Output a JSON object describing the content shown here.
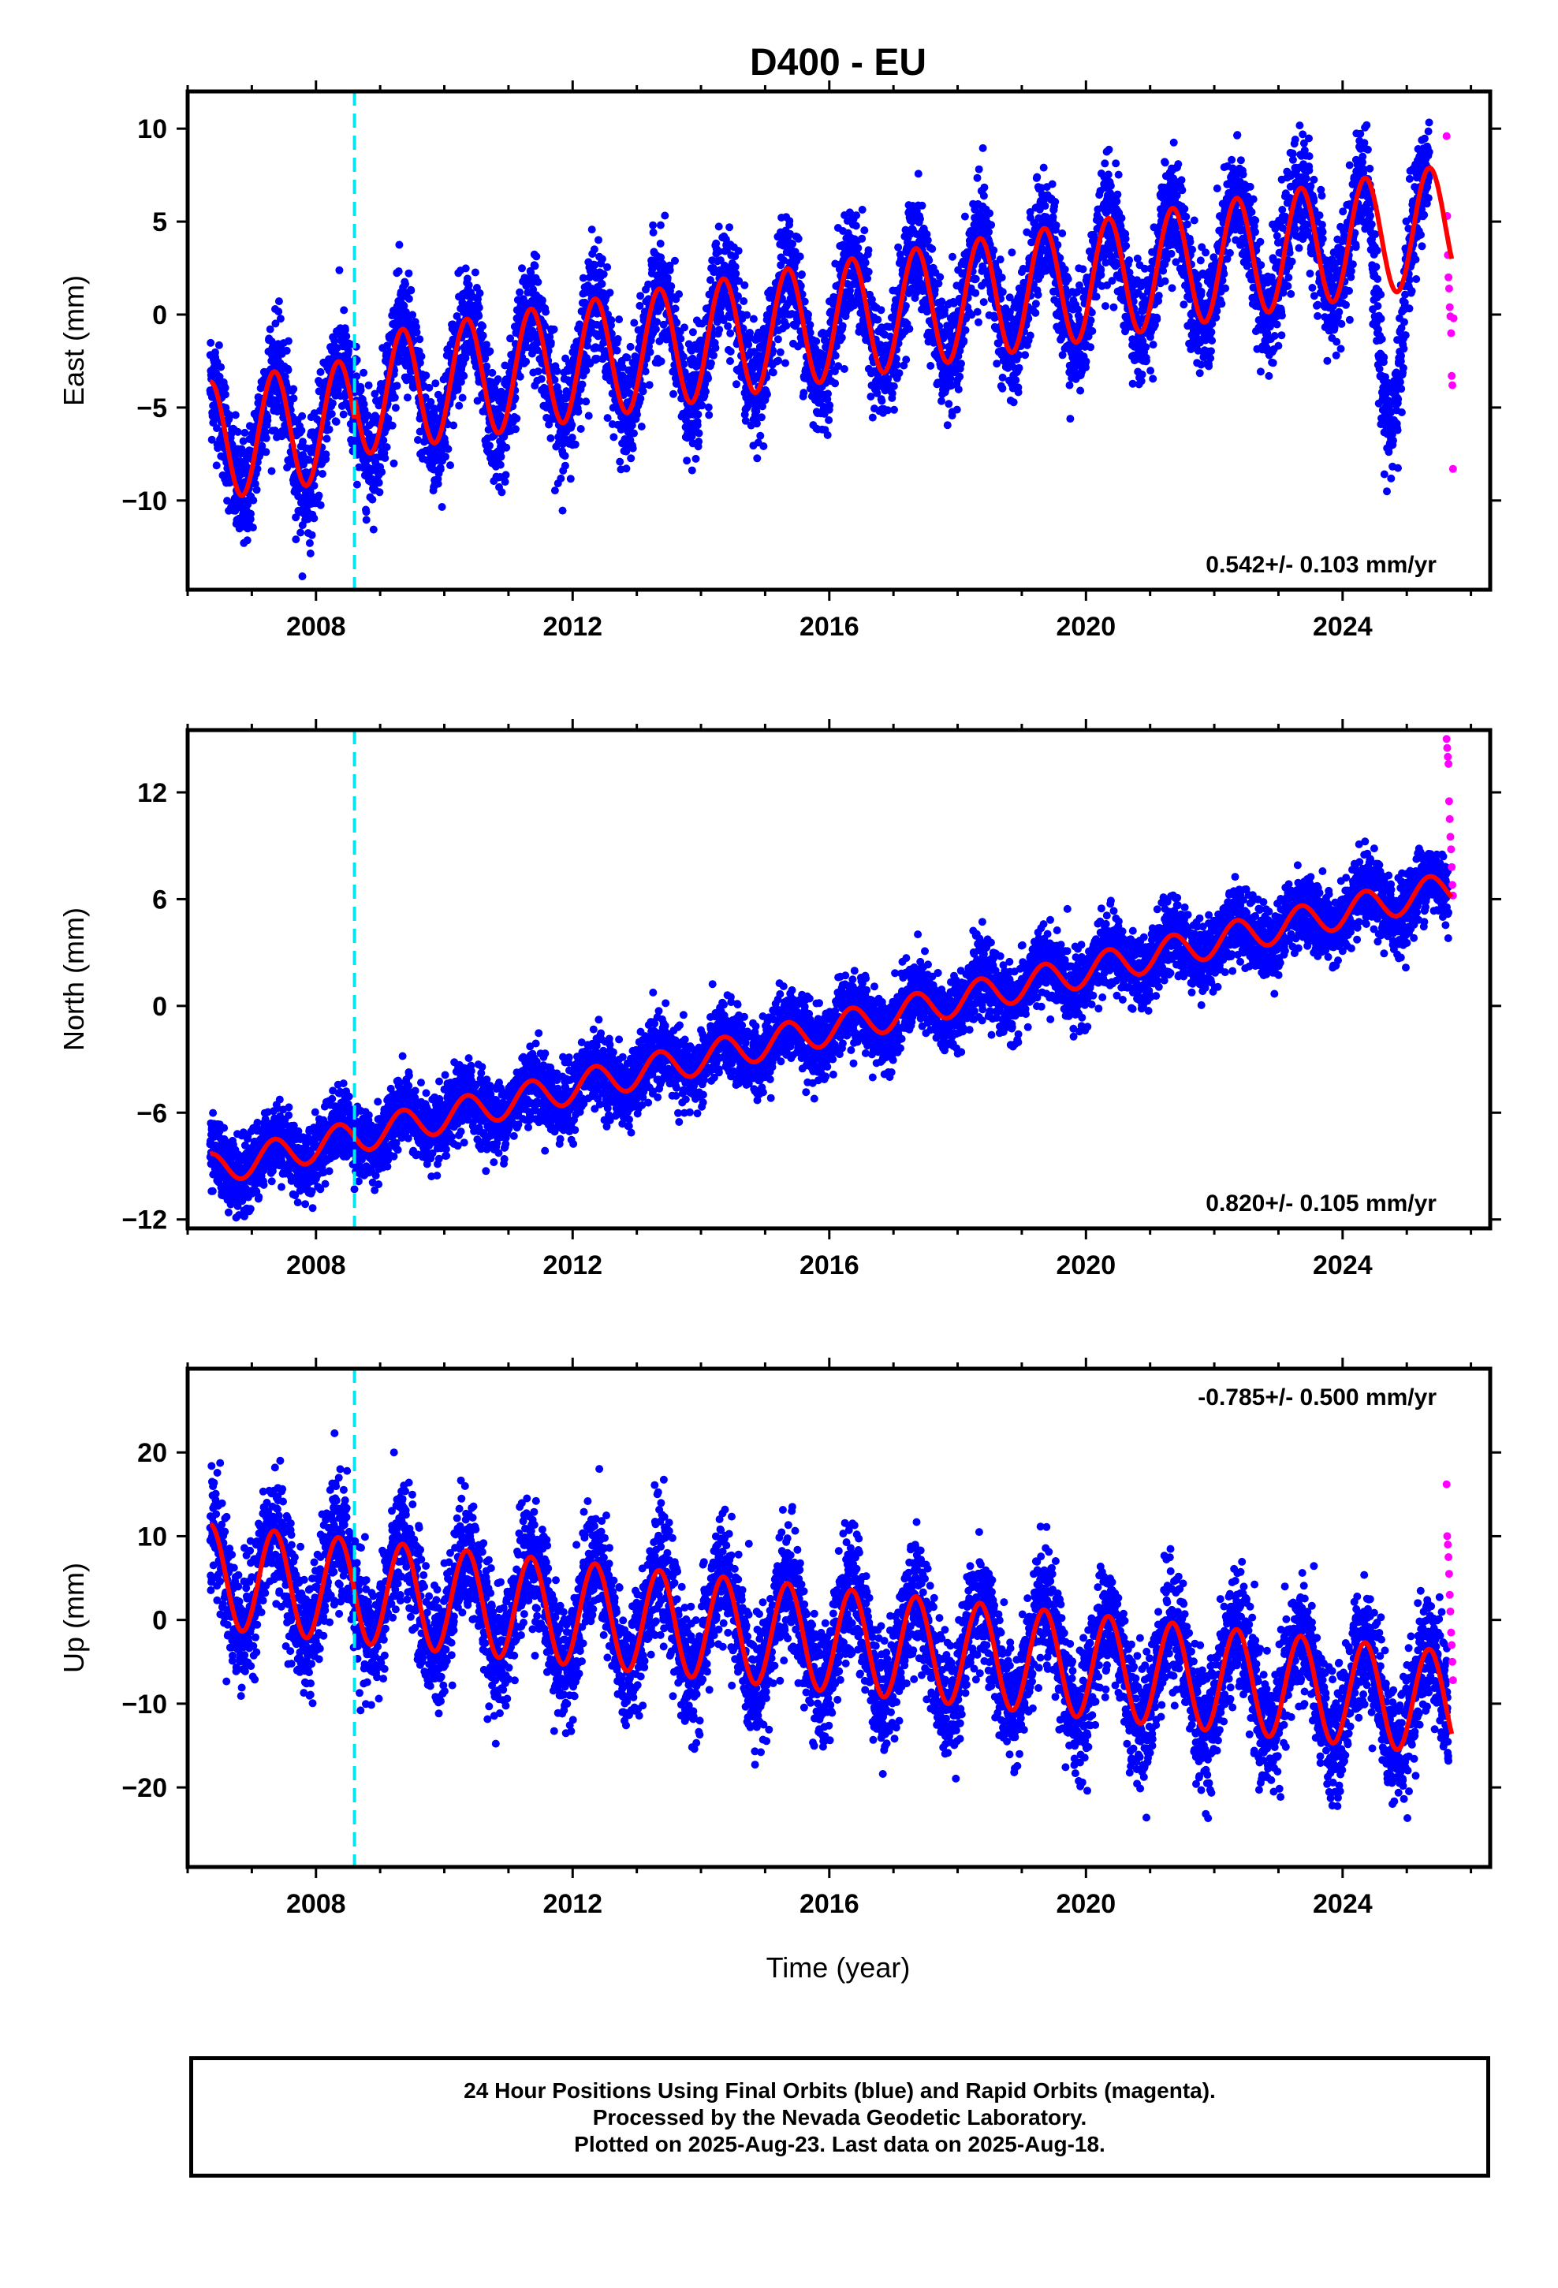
{
  "title": "D400 - EU",
  "xlabel": "Time (year)",
  "colors": {
    "final": "#0000ff",
    "rapid": "#ff00ff",
    "model": "#ff0000",
    "equipment_change": "#00e5ee",
    "frame": "#000000"
  },
  "footer": {
    "line1": "24 Hour Positions Using Final Orbits (blue) and Rapid Orbits (magenta).",
    "line2": "Processed by the Nevada Geodetic Laboratory.",
    "line3": "Plotted on 2025-Aug-23. Last data on 2025-Aug-18."
  },
  "chart_data": [
    {
      "type": "scatter",
      "component": "East",
      "ylabel": "East (mm)",
      "rate_label": "0.542+/- 0.103 mm/yr",
      "xlim": [
        2006.0,
        2026.3
      ],
      "ylim": [
        -14.8,
        12
      ],
      "xticks": [
        2008,
        2012,
        2016,
        2020,
        2024
      ],
      "yticks": [
        -10,
        -5,
        0,
        5,
        10
      ],
      "yticklabels": [
        "−10",
        "−5",
        "0",
        "5",
        "10"
      ],
      "series": [
        {
          "kind": "final_orbits",
          "x_start": 2006.35,
          "x_end": 2025.35,
          "trend_at_2006": -7.0,
          "rate": 0.542,
          "annual_amp": 3.2,
          "noise": 1.5
        },
        {
          "kind": "rapid_orbits",
          "x": [
            2025.62,
            2025.63,
            2025.64,
            2025.65,
            2025.66,
            2025.67,
            2025.68,
            2025.69,
            2025.7,
            2025.71,
            2025.72,
            2025.73
          ],
          "y": [
            9.6,
            5.3,
            3.2,
            2.0,
            1.4,
            0.4,
            -0.1,
            -1.0,
            -3.3,
            -3.8,
            -8.3,
            -0.2
          ]
        },
        {
          "kind": "model",
          "x_start": 2006.35,
          "x_end": 2025.7,
          "offset_at": 2008.6,
          "offset": 1.2
        }
      ],
      "equipment_change_year": 2008.6,
      "data_gap": {
        "x_start": 2024.4,
        "x_end": 2025.0,
        "note": "departure of data below model"
      }
    },
    {
      "type": "scatter",
      "component": "North",
      "ylabel": "North (mm)",
      "rate_label": "0.820+/- 0.105 mm/yr",
      "xlim": [
        2006.0,
        2026.3
      ],
      "ylim": [
        -12.5,
        15.5
      ],
      "xticks": [
        2008,
        2012,
        2016,
        2020,
        2024
      ],
      "yticks": [
        -12,
        -6,
        0,
        6,
        12
      ],
      "yticklabels": [
        "−12",
        "−6",
        "0",
        "6",
        "12"
      ],
      "series": [
        {
          "kind": "final_orbits",
          "x_start": 2006.35,
          "x_end": 2025.65,
          "trend_at_2006": -9.5,
          "rate": 0.82,
          "annual_amp": 0.9,
          "noise": 1.0
        },
        {
          "kind": "rapid_orbits",
          "x": [
            2025.62,
            2025.63,
            2025.64,
            2025.65,
            2025.66,
            2025.67,
            2025.68,
            2025.69,
            2025.7,
            2025.71,
            2025.72
          ],
          "y": [
            15.0,
            14.5,
            14.0,
            13.6,
            11.5,
            10.5,
            9.5,
            8.8,
            7.8,
            6.8,
            6.2
          ]
        },
        {
          "kind": "model",
          "x_start": 2006.35,
          "x_end": 2025.7
        }
      ],
      "equipment_change_year": 2008.6
    },
    {
      "type": "scatter",
      "component": "Up",
      "ylabel": "Up (mm)",
      "rate_label": "-0.785+/- 0.500 mm/yr",
      "xlim": [
        2006.0,
        2026.3
      ],
      "ylim": [
        -29.5,
        30
      ],
      "xticks": [
        2008,
        2012,
        2016,
        2020,
        2024
      ],
      "yticks": [
        -20,
        -10,
        0,
        10,
        20
      ],
      "yticklabels": [
        "−20",
        "−10",
        "0",
        "10",
        "20"
      ],
      "series": [
        {
          "kind": "final_orbits",
          "x_start": 2006.35,
          "x_end": 2025.65,
          "trend_at_2006": 5.5,
          "rate": -0.785,
          "annual_amp": 6.2,
          "noise": 3.6
        },
        {
          "kind": "rapid_orbits",
          "x": [
            2025.62,
            2025.63,
            2025.64,
            2025.65,
            2025.66,
            2025.67,
            2025.68,
            2025.69,
            2025.7,
            2025.71,
            2025.72
          ],
          "y": [
            16.2,
            10.0,
            9.0,
            7.5,
            5.5,
            3.0,
            1.0,
            -1.5,
            -3.0,
            -5.0,
            -7.2
          ]
        },
        {
          "kind": "model",
          "x_start": 2006.35,
          "x_end": 2025.7
        }
      ],
      "equipment_change_year": 2008.6
    }
  ]
}
